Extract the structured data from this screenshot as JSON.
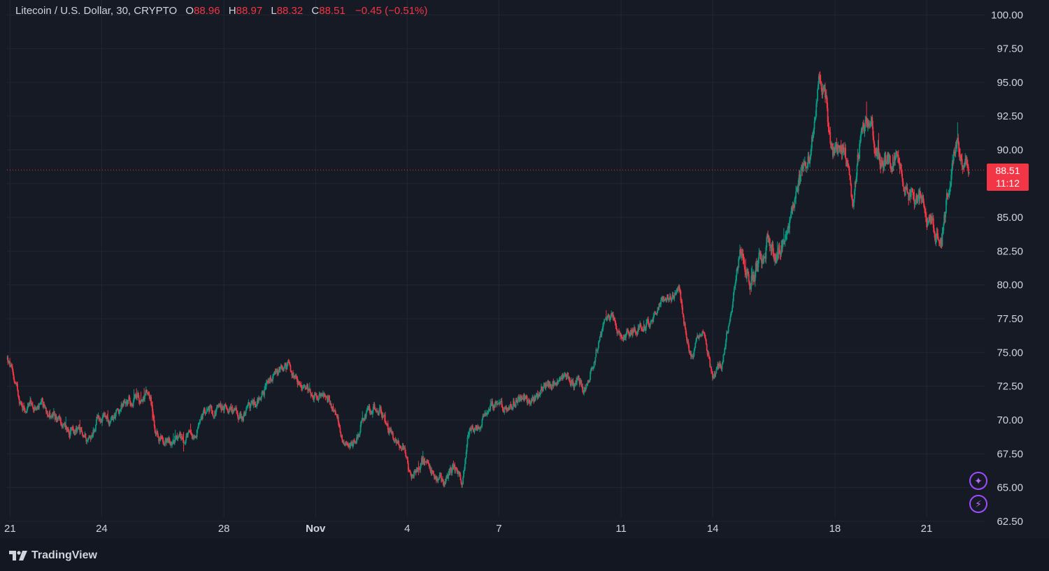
{
  "legend": {
    "symbol": "Litecoin / U.S. Dollar, 30, CRYPTO",
    "open_key": "O",
    "open": "88.96",
    "high_key": "H",
    "high": "88.97",
    "low_key": "L",
    "low": "88.32",
    "close_key": "C",
    "close": "88.51",
    "change": "−0.45 (−0.51%)"
  },
  "price_tag": {
    "price": "88.51",
    "countdown": "11:12"
  },
  "brand": {
    "name": "TradingView"
  },
  "colors": {
    "background": "#161a25",
    "grid": "#232632",
    "up": "#089981",
    "down": "#f23645",
    "text": "#d1d4dc",
    "accent": "#9c4dff"
  },
  "buttons": [
    {
      "icon": "sparkle-icon",
      "glyph": "✦"
    },
    {
      "icon": "lightning-icon",
      "glyph": "⚡"
    }
  ],
  "chart_data": {
    "type": "candlestick",
    "title": "",
    "interval": "30",
    "ylim": [
      61.2,
      101.1
    ],
    "y_ticks": [
      "100.00",
      "97.50",
      "95.00",
      "92.50",
      "90.00",
      "87.50",
      "85.00",
      "82.50",
      "80.00",
      "77.50",
      "75.00",
      "72.50",
      "70.00",
      "67.50",
      "65.00",
      "62.50"
    ],
    "x_ticks": [
      "21",
      "24",
      "28",
      "Nov",
      "4",
      "7",
      "11",
      "14",
      "18",
      "21"
    ],
    "x_tick_days": [
      -10,
      -7,
      -3,
      0,
      3,
      6,
      10,
      13,
      17,
      20
    ],
    "x_range_days": [
      -10.1,
      21.9
    ],
    "last_price": 88.51,
    "anchors": [
      [
        -10.1,
        74.6
      ],
      [
        -9.6,
        71.0
      ],
      [
        -8.8,
        70.8
      ],
      [
        -8.2,
        69.4
      ],
      [
        -7.4,
        68.6
      ],
      [
        -7.1,
        70.2
      ],
      [
        -6.7,
        69.8
      ],
      [
        -6.2,
        71.4
      ],
      [
        -5.6,
        71.8
      ],
      [
        -5.4,
        72.0
      ],
      [
        -5.25,
        68.6
      ],
      [
        -4.7,
        68.4
      ],
      [
        -4.1,
        68.6
      ],
      [
        -3.6,
        70.6
      ],
      [
        -2.8,
        71.0
      ],
      [
        -2.4,
        70.2
      ],
      [
        -1.4,
        73.0
      ],
      [
        -0.9,
        74.0
      ],
      [
        -0.6,
        72.6
      ],
      [
        0.2,
        71.7
      ],
      [
        0.5,
        71.4
      ],
      [
        0.9,
        68.6
      ],
      [
        1.2,
        68.2
      ],
      [
        1.6,
        70.4
      ],
      [
        2.1,
        70.8
      ],
      [
        2.4,
        69.2
      ],
      [
        2.9,
        68.0
      ],
      [
        3.1,
        65.8
      ],
      [
        3.5,
        67.0
      ],
      [
        4.0,
        65.6
      ],
      [
        4.2,
        65.2
      ],
      [
        4.5,
        66.6
      ],
      [
        4.8,
        65.4
      ],
      [
        5.0,
        69.2
      ],
      [
        5.4,
        69.6
      ],
      [
        5.7,
        71.2
      ],
      [
        6.1,
        70.8
      ],
      [
        6.6,
        71.6
      ],
      [
        7.0,
        71.4
      ],
      [
        7.6,
        72.6
      ],
      [
        8.1,
        73.0
      ],
      [
        8.6,
        72.8
      ],
      [
        8.8,
        72.0
      ],
      [
        9.4,
        77.0
      ],
      [
        9.7,
        77.8
      ],
      [
        10.0,
        76.0
      ],
      [
        10.3,
        76.4
      ],
      [
        10.6,
        77.2
      ],
      [
        11.0,
        77.0
      ],
      [
        11.3,
        78.6
      ],
      [
        11.9,
        79.6
      ],
      [
        12.1,
        76.8
      ],
      [
        12.3,
        74.6
      ],
      [
        12.7,
        77.0
      ],
      [
        13.0,
        73.0
      ],
      [
        13.3,
        74.2
      ],
      [
        13.6,
        78.0
      ],
      [
        13.9,
        82.5
      ],
      [
        14.1,
        80.2
      ],
      [
        14.4,
        81.2
      ],
      [
        14.8,
        83.4
      ],
      [
        15.1,
        82.2
      ],
      [
        15.4,
        84.0
      ],
      [
        15.8,
        87.5
      ],
      [
        16.2,
        90.2
      ],
      [
        16.5,
        95.2
      ],
      [
        16.7,
        93.5
      ],
      [
        16.9,
        89.6
      ],
      [
        17.3,
        90.4
      ],
      [
        17.6,
        86.0
      ],
      [
        17.9,
        92.2
      ],
      [
        18.2,
        92.0
      ],
      [
        18.5,
        89.0
      ],
      [
        19.0,
        89.2
      ],
      [
        19.4,
        86.8
      ],
      [
        19.8,
        86.2
      ],
      [
        20.2,
        84.4
      ],
      [
        20.5,
        84.0
      ],
      [
        20.8,
        88.4
      ],
      [
        21.0,
        90.8
      ],
      [
        21.2,
        89.2
      ],
      [
        21.4,
        88.5
      ]
    ]
  }
}
